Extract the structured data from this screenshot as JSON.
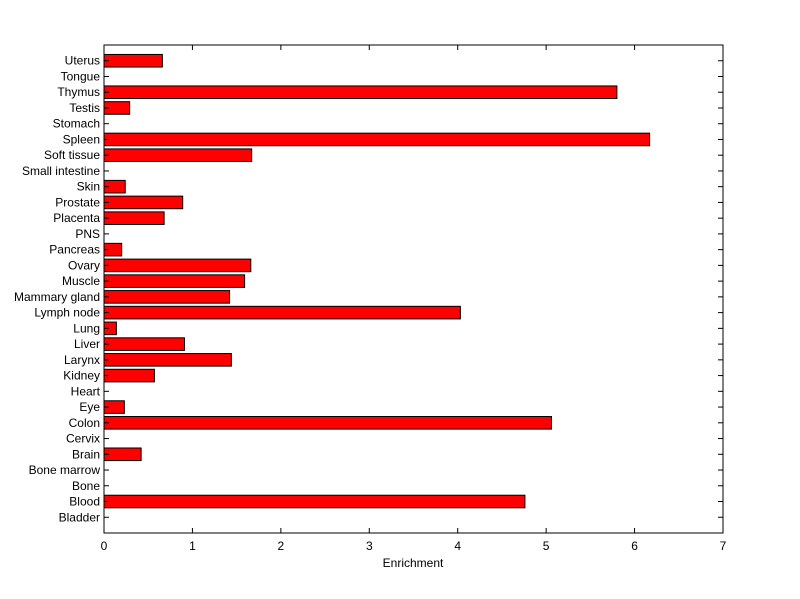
{
  "chart_data": {
    "type": "bar",
    "orientation": "horizontal",
    "title": "",
    "xlabel": "Enrichment",
    "ylabel": "",
    "xlim": [
      0,
      7
    ],
    "xticks": [
      0,
      1,
      2,
      3,
      4,
      5,
      6,
      7
    ],
    "grid": false,
    "legend": "none",
    "bar_color": "#ff0000",
    "bar_edge_color": "#000000",
    "categories": [
      "Bladder",
      "Blood",
      "Bone",
      "Bone marrow",
      "Brain",
      "Cervix",
      "Colon",
      "Eye",
      "Heart",
      "Kidney",
      "Larynx",
      "Liver",
      "Lung",
      "Lymph node",
      "Mammary gland",
      "Muscle",
      "Ovary",
      "Pancreas",
      "PNS",
      "Placenta",
      "Prostate",
      "Skin",
      "Small intestine",
      "Soft tissue",
      "Spleen",
      "Stomach",
      "Testis",
      "Thymus",
      "Tongue",
      "Uterus"
    ],
    "values": [
      0,
      4.76,
      0,
      0,
      0.42,
      0,
      5.06,
      0.23,
      0,
      0.57,
      1.44,
      0.91,
      0.14,
      4.03,
      1.42,
      1.59,
      1.66,
      0.2,
      0,
      0.68,
      0.89,
      0.24,
      0,
      1.67,
      6.17,
      0,
      0.29,
      5.8,
      0,
      0.66
    ]
  }
}
